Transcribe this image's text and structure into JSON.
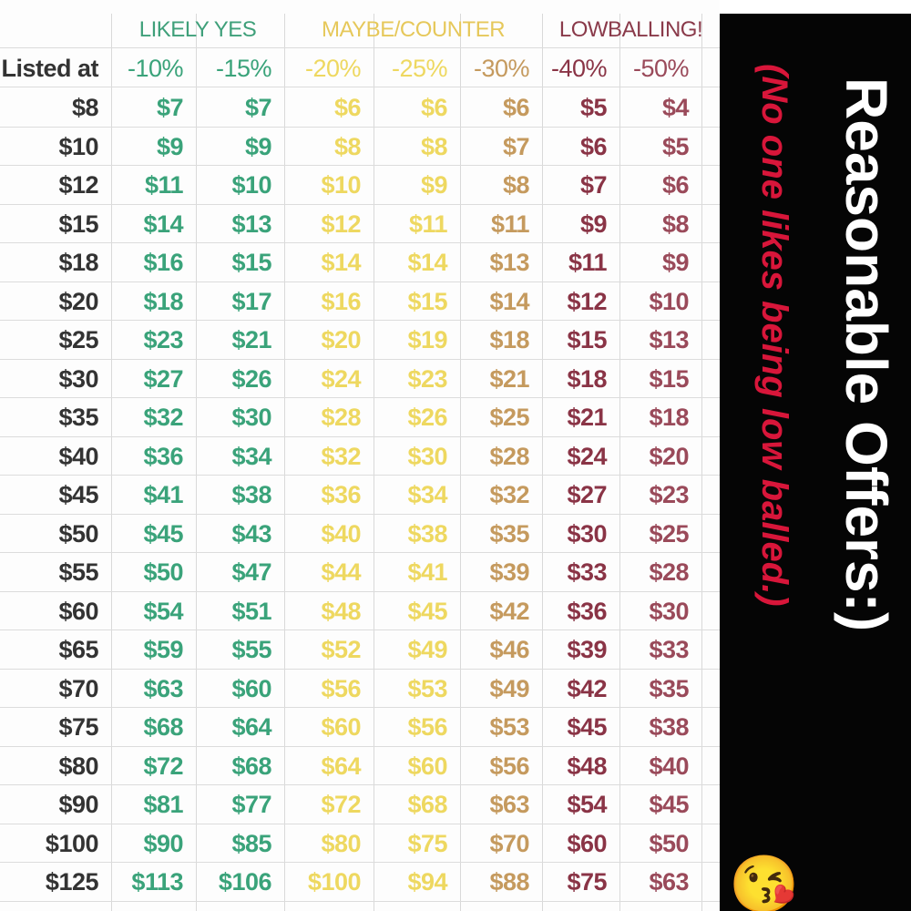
{
  "groups": [
    {
      "label": "LIKELY YES",
      "color": "#3fa07a"
    },
    {
      "label": "MAYBE/COUNTER",
      "color": "#e6c85a"
    },
    {
      "label": "LOWBALLING!",
      "color": "#8a3a4a"
    }
  ],
  "header": {
    "listed": "Listed at",
    "discounts": [
      "-10%",
      "-15%",
      "-20%",
      "-25%",
      "-30%",
      "-40%",
      "-50%"
    ]
  },
  "column_colors": [
    "#333333",
    "#3aa37a",
    "#3aa37a",
    "#eed860",
    "#eed860",
    "#c59a5e",
    "#8a3446",
    "#9a4a5a"
  ],
  "rows": [
    [
      "$8",
      "$7",
      "$7",
      "$6",
      "$6",
      "$6",
      "$5",
      "$4"
    ],
    [
      "$10",
      "$9",
      "$9",
      "$8",
      "$8",
      "$7",
      "$6",
      "$5"
    ],
    [
      "$12",
      "$11",
      "$10",
      "$10",
      "$9",
      "$8",
      "$7",
      "$6"
    ],
    [
      "$15",
      "$14",
      "$13",
      "$12",
      "$11",
      "$11",
      "$9",
      "$8"
    ],
    [
      "$18",
      "$16",
      "$15",
      "$14",
      "$14",
      "$13",
      "$11",
      "$9"
    ],
    [
      "$20",
      "$18",
      "$17",
      "$16",
      "$15",
      "$14",
      "$12",
      "$10"
    ],
    [
      "$25",
      "$23",
      "$21",
      "$20",
      "$19",
      "$18",
      "$15",
      "$13"
    ],
    [
      "$30",
      "$27",
      "$26",
      "$24",
      "$23",
      "$21",
      "$18",
      "$15"
    ],
    [
      "$35",
      "$32",
      "$30",
      "$28",
      "$26",
      "$25",
      "$21",
      "$18"
    ],
    [
      "$40",
      "$36",
      "$34",
      "$32",
      "$30",
      "$28",
      "$24",
      "$20"
    ],
    [
      "$45",
      "$41",
      "$38",
      "$36",
      "$34",
      "$32",
      "$27",
      "$23"
    ],
    [
      "$50",
      "$45",
      "$43",
      "$40",
      "$38",
      "$35",
      "$30",
      "$25"
    ],
    [
      "$55",
      "$50",
      "$47",
      "$44",
      "$41",
      "$39",
      "$33",
      "$28"
    ],
    [
      "$60",
      "$54",
      "$51",
      "$48",
      "$45",
      "$42",
      "$36",
      "$30"
    ],
    [
      "$65",
      "$59",
      "$55",
      "$52",
      "$49",
      "$46",
      "$39",
      "$33"
    ],
    [
      "$70",
      "$63",
      "$60",
      "$56",
      "$53",
      "$49",
      "$42",
      "$35"
    ],
    [
      "$75",
      "$68",
      "$64",
      "$60",
      "$56",
      "$53",
      "$45",
      "$38"
    ],
    [
      "$80",
      "$72",
      "$68",
      "$64",
      "$60",
      "$56",
      "$48",
      "$40"
    ],
    [
      "$90",
      "$81",
      "$77",
      "$72",
      "$68",
      "$63",
      "$54",
      "$45"
    ],
    [
      "$100",
      "$90",
      "$85",
      "$80",
      "$75",
      "$70",
      "$60",
      "$50"
    ],
    [
      "$125",
      "$113",
      "$106",
      "$100",
      "$94",
      "$88",
      "$75",
      "$63"
    ]
  ],
  "banner": {
    "title": "Reasonable Offers:)",
    "subtitle": "(No one likes being low balled.)",
    "emoji": "😘"
  }
}
